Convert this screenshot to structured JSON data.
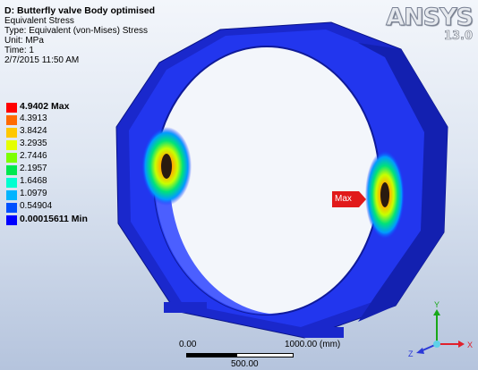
{
  "result": {
    "title": "D: Butterfly valve Body optimised",
    "name": "Equivalent Stress",
    "type": "Type: Equivalent (von-Mises) Stress",
    "unit": "Unit: MPa",
    "time": "Time: 1",
    "date": "2/7/2015 11:50 AM"
  },
  "legend": [
    {
      "label": "4.9402 Max",
      "color": "#ff0000",
      "bold": true
    },
    {
      "label": "4.3913",
      "color": "#ff6a00"
    },
    {
      "label": "3.8424",
      "color": "#ffc800"
    },
    {
      "label": "3.2935",
      "color": "#e5ff00"
    },
    {
      "label": "2.7446",
      "color": "#7dff00"
    },
    {
      "label": "2.1957",
      "color": "#00e84f"
    },
    {
      "label": "1.6468",
      "color": "#00ffd0"
    },
    {
      "label": "1.0979",
      "color": "#00b4ff"
    },
    {
      "label": "0.54904",
      "color": "#0050ff"
    },
    {
      "label": "0.00015611 Min",
      "color": "#0000ff",
      "bold": true
    }
  ],
  "logo": {
    "brand": "ANSYS",
    "version": "13.0"
  },
  "max_marker": {
    "label": "Max"
  },
  "scale": {
    "start": "0.00",
    "end": "1000.00 (mm)",
    "mid": "500.00"
  },
  "triad": {
    "y": "Y",
    "x": "X",
    "z": "Z"
  }
}
